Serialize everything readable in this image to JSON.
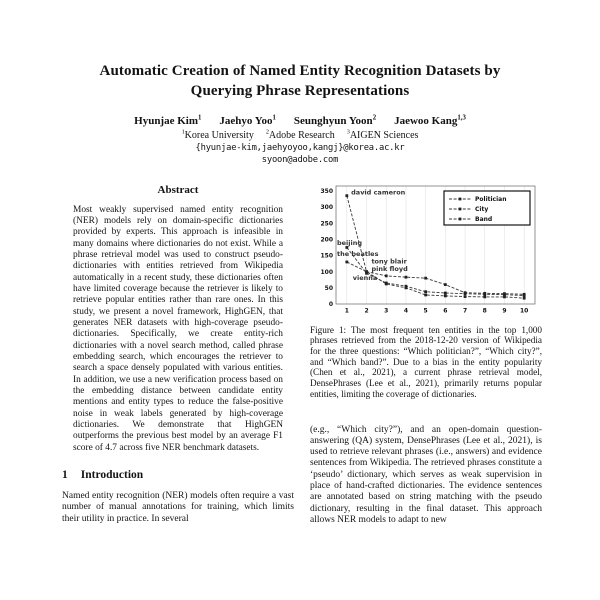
{
  "page": {
    "title": "Automatic Creation of Named Entity Recognition Datasets by Querying Phrase Representations",
    "authors": [
      {
        "name": "Hyunjae Kim",
        "sup": "1"
      },
      {
        "name": "Jaehyo Yoo",
        "sup": "1"
      },
      {
        "name": "Seunghyun Yoon",
        "sup": "2"
      },
      {
        "name": "Jaewoo Kang",
        "sup": "1,3"
      }
    ],
    "affiliations": [
      {
        "sup": "1",
        "name": "Korea University"
      },
      {
        "sup": "2",
        "name": "Adobe Research"
      },
      {
        "sup": "3",
        "name": "AIGEN Sciences"
      }
    ],
    "emails": [
      "{hyunjae-kim,jaehyoyoo,kangj}@korea.ac.kr",
      "syoon@adobe.com"
    ]
  },
  "abstract": {
    "heading": "Abstract",
    "text": "Most weakly supervised named entity recognition (NER) models rely on domain-specific dictionaries provided by experts. This approach is infeasible in many domains where dictionaries do not exist. While a phrase retrieval model was used to construct pseudo-dictionaries with entities retrieved from Wikipedia automatically in a recent study, these dictionaries often have limited coverage because the retriever is likely to retrieve popular entities rather than rare ones. In this study, we present a novel framework, HighGEN, that generates NER datasets with high-coverage pseudo-dictionaries. Specifically, we create entity-rich dictionaries with a novel search method, called phrase embedding search, which encourages the retriever to search a space densely populated with various entities. In addition, we use a new verification process based on the embedding distance between candidate entity mentions and entity types to reduce the false-positive noise in weak labels generated by high-coverage dictionaries. We demonstrate that HighGEN outperforms the previous best model by an average F1 score of 4.7 across five NER benchmark datasets."
  },
  "introduction": {
    "number": "1",
    "title": "Introduction",
    "text": "Named entity recognition (NER) models often require a vast number of manual annotations for training, which limits their utility in practice. In several"
  },
  "figure": {
    "caption": "Figure 1: The most frequent ten entities in the top 1,000 phrases retrieved from the 2018-12-20 version of Wikipedia for the three questions: “Which politician?”, “Which city?”, and “Which band?”. Due to a bias in the entity popularity (Chen et al., 2021), a current phrase retrieval model, DensePhrases (Lee et al., 2021), primarily returns popular entities, limiting the coverage of dictionaries."
  },
  "body_right": {
    "text": "(e.g., “Which city?”), and an open-domain question-answering (QA) system, DensePhrases (Lee et al., 2021), is used to retrieve relevant phrases (i.e., answers) and evidence sentences from Wikipedia. The retrieved phrases constitute a ‘pseudo’ dictionary, which serves as weak supervision in place of hand-crafted dictionaries. The evidence sentences are annotated based on string matching with the pseudo dictionary, resulting in the final dataset. This approach allows NER models to adapt to new"
  },
  "chart_data": {
    "type": "line",
    "x": [
      1,
      2,
      3,
      4,
      5,
      6,
      7,
      8,
      9,
      10
    ],
    "series": [
      {
        "name": "Politician",
        "values": [
          335,
          100,
          87,
          83,
          80,
          60,
          35,
          33,
          32,
          30
        ]
      },
      {
        "name": "City",
        "values": [
          175,
          95,
          65,
          55,
          38,
          34,
          32,
          30,
          29,
          26
        ]
      },
      {
        "name": "Band",
        "values": [
          130,
          100,
          62,
          50,
          28,
          25,
          23,
          22,
          22,
          18
        ]
      }
    ],
    "annotations": [
      {
        "text": "david cameron",
        "x": 1.22,
        "y": 338
      },
      {
        "text": "beijing",
        "x": 0.5,
        "y": 183
      },
      {
        "text": "the beatles",
        "x": 0.5,
        "y": 148
      },
      {
        "text": "tony blair",
        "x": 2.25,
        "y": 126
      },
      {
        "text": "pink floyd",
        "x": 2.25,
        "y": 102
      },
      {
        "text": "vienna",
        "x": 1.3,
        "y": 74
      }
    ],
    "yticks": [
      0,
      50,
      100,
      150,
      200,
      250,
      300,
      350
    ],
    "ylim": [
      0,
      365
    ],
    "xlim": [
      0.45,
      10.55
    ],
    "legend_position": "top-right",
    "grid": "vertical-light",
    "line_color": "#3a3a3a",
    "marker": "square",
    "title": "",
    "xlabel": "",
    "ylabel": ""
  }
}
